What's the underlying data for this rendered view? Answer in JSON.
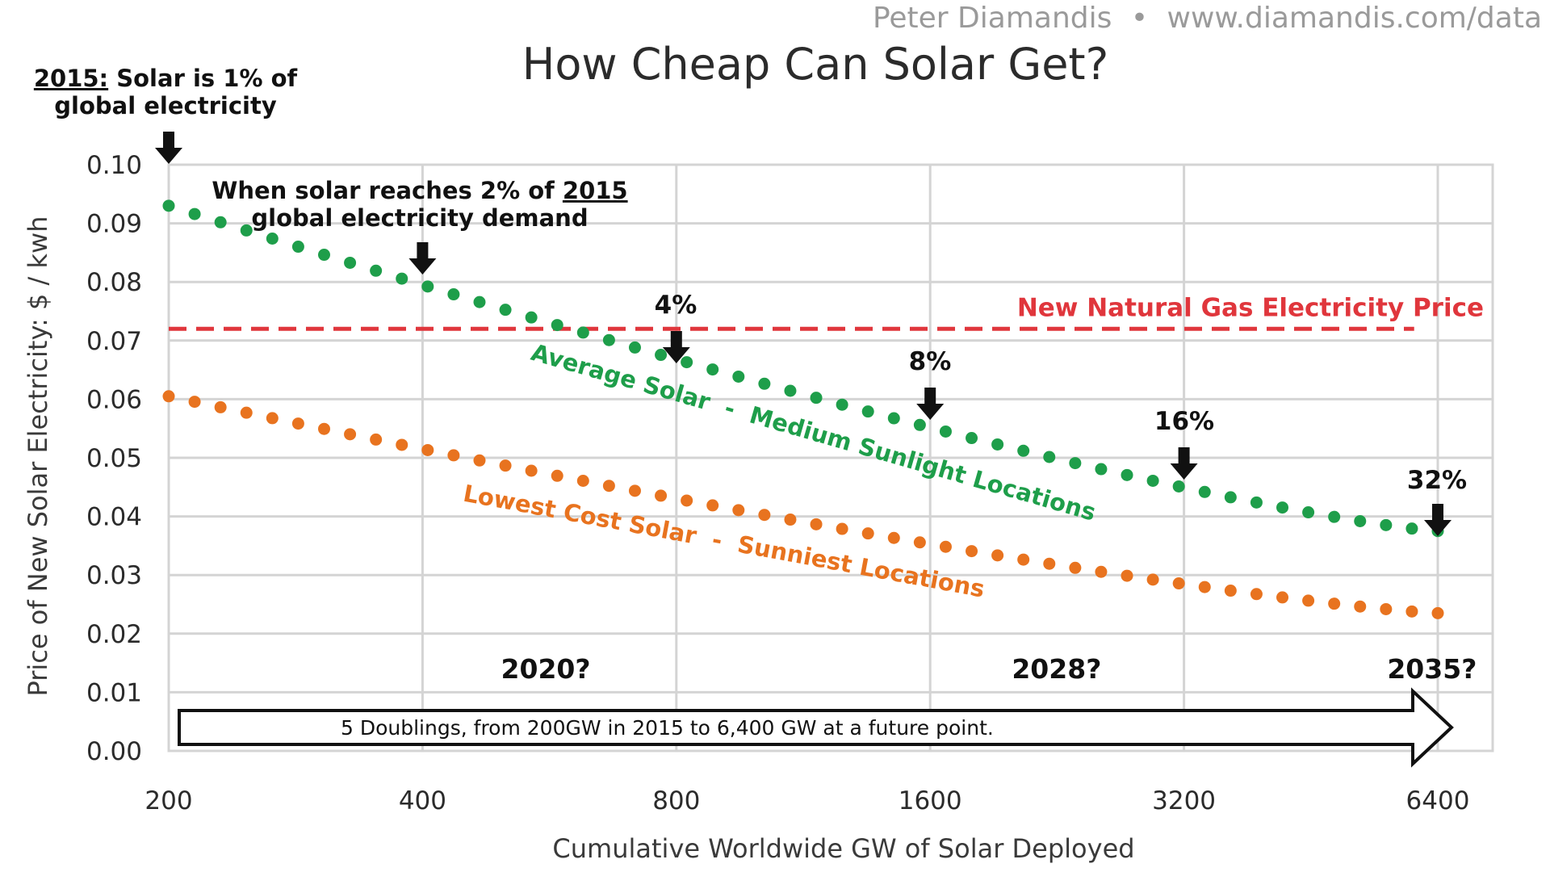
{
  "credit": {
    "author": "Peter Diamandis",
    "separator": "•",
    "site": "www.diamandis.com/data"
  },
  "chart_data": {
    "type": "scatter",
    "title": "How Cheap Can Solar Get?",
    "xlabel": "Cumulative Worldwide GW of Solar Deployed",
    "ylabel": "Price of New Solar Electricity: $ / kwh",
    "x_scale": "log2",
    "xlim": [
      200,
      6400
    ],
    "ylim": [
      0,
      0.1
    ],
    "grid": true,
    "x_ticks": [
      200,
      400,
      800,
      1600,
      3200,
      6400
    ],
    "x_tick_labels": [
      "200",
      "400",
      "800",
      "1600",
      "3200",
      "6400"
    ],
    "y_ticks": [
      0,
      0.01,
      0.02,
      0.03,
      0.04,
      0.05,
      0.06,
      0.07,
      0.08,
      0.09,
      0.1
    ],
    "y_tick_labels": [
      "0.00",
      "0.01",
      "0.02",
      "0.03",
      "0.04",
      "0.05",
      "0.06",
      "0.07",
      "0.08",
      "0.09",
      "0.10"
    ],
    "series": [
      {
        "name": "Average Solar  -  Medium Sunlight Locations",
        "color": "#1e9e4a",
        "x_start": 200,
        "x_end": 6400,
        "points": 50,
        "y_start": 0.093,
        "y_end": 0.0375
      },
      {
        "name": "Lowest Cost Solar  -  Sunniest Locations",
        "color": "#e8731f",
        "x_start": 200,
        "x_end": 6400,
        "points": 50,
        "y_start": 0.0605,
        "y_end": 0.0235
      }
    ],
    "reference_line": {
      "name": "New Natural Gas Electricity Price",
      "value": 0.072,
      "color": "#e0363c",
      "x_start": 200,
      "x_end": 6000
    },
    "markers": [
      {
        "x": 200,
        "lines": [
          "2015: Solar is 1% of",
          "global electricity"
        ],
        "underline": "2015:"
      },
      {
        "x": 400,
        "lines": [
          "When solar reaches 2% of 2015",
          "global electricity demand"
        ],
        "underline": "2015"
      },
      {
        "x": 800,
        "lines": [
          "4%"
        ]
      },
      {
        "x": 1600,
        "lines": [
          "8%"
        ]
      },
      {
        "x": 3200,
        "lines": [
          "16%"
        ]
      },
      {
        "x": 6400,
        "lines": [
          "32%"
        ]
      }
    ],
    "year_labels": [
      {
        "x": 560,
        "text": "2020?"
      },
      {
        "x": 2260,
        "text": "2028?"
      },
      {
        "x": 6300,
        "text": "2035?"
      }
    ],
    "doubling_arrow": {
      "text": "5 Doublings, from 200GW in 2015 to 6,400 GW at a future point.",
      "y_value": 0.004
    }
  }
}
